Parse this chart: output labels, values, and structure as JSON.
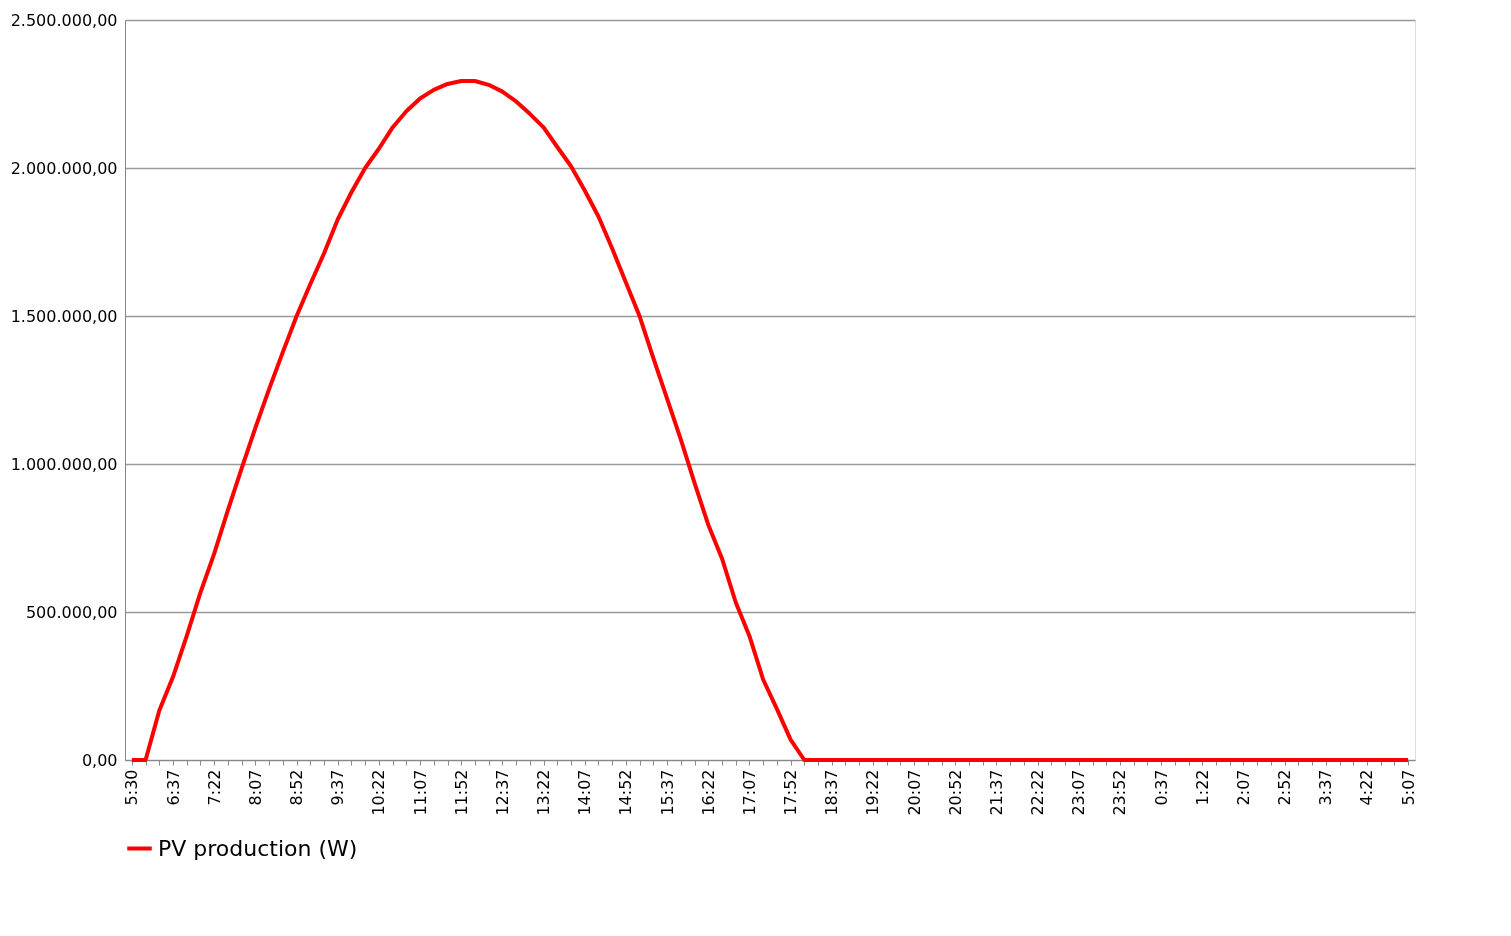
{
  "chart_data": {
    "type": "line",
    "categories": [
      "5:30",
      null,
      null,
      "6:37",
      null,
      null,
      "7:22",
      null,
      null,
      "8:07",
      null,
      null,
      "8:52",
      null,
      null,
      "9:37",
      null,
      null,
      "10:22",
      null,
      null,
      "11:07",
      null,
      null,
      "11:52",
      null,
      null,
      "12:37",
      null,
      null,
      "13:22",
      null,
      null,
      "14:07",
      null,
      null,
      "14:52",
      null,
      null,
      "15:37",
      null,
      null,
      "16:22",
      null,
      null,
      "17:07",
      null,
      null,
      "17:52",
      null,
      null,
      "18:37",
      null,
      null,
      "19:22",
      null,
      null,
      "20:07",
      null,
      null,
      "20:52",
      null,
      null,
      "21:37",
      null,
      null,
      "22:22",
      null,
      null,
      "23:07",
      null,
      null,
      "23:52",
      null,
      null,
      "0:37",
      null,
      null,
      "1:22",
      null,
      null,
      "2:07",
      null,
      null,
      "2:52",
      null,
      null,
      "3:37",
      null,
      null,
      "4:22",
      null,
      null,
      "5:07"
    ],
    "series": [
      {
        "name": "PV production (W)",
        "color": "#ff0000",
        "values": [
          0,
          0,
          167000,
          281000,
          419000,
          566000,
          697000,
          844000,
          985000,
          1122000,
          1253000,
          1378000,
          1499000,
          1607000,
          1711000,
          1826000,
          1918000,
          2000000,
          2065000,
          2137000,
          2192000,
          2235000,
          2264000,
          2284000,
          2294000,
          2294000,
          2281000,
          2258000,
          2225000,
          2183000,
          2137000,
          2071000,
          2006000,
          1924000,
          1836000,
          1728000,
          1613000,
          1499000,
          1358000,
          1221000,
          1083000,
          936000,
          795000,
          681000,
          533000,
          419000,
          272000,
          173000,
          69000,
          0,
          0,
          0,
          0,
          0,
          0,
          0,
          0,
          0,
          0,
          0,
          0,
          0,
          0,
          0,
          0,
          0,
          0,
          0,
          0,
          0,
          0,
          0,
          0,
          0,
          0,
          0,
          0,
          0,
          0,
          0,
          0,
          0,
          0,
          0,
          0,
          0,
          0,
          0,
          0,
          0,
          0,
          0,
          0,
          0
        ]
      }
    ],
    "ylim": [
      0,
      2500000
    ],
    "yticks": [
      {
        "value": 0,
        "label": "0,00"
      },
      {
        "value": 500000,
        "label": "500.000,00"
      },
      {
        "value": 1000000,
        "label": "1.000.000,00"
      },
      {
        "value": 1500000,
        "label": "1.500.000,00"
      },
      {
        "value": 2000000,
        "label": "2.000.000,00"
      },
      {
        "value": 2500000,
        "label": "2.500.000,00"
      }
    ],
    "grid": "y",
    "legend": "bottom",
    "marker": "none",
    "line_style": "solid"
  }
}
